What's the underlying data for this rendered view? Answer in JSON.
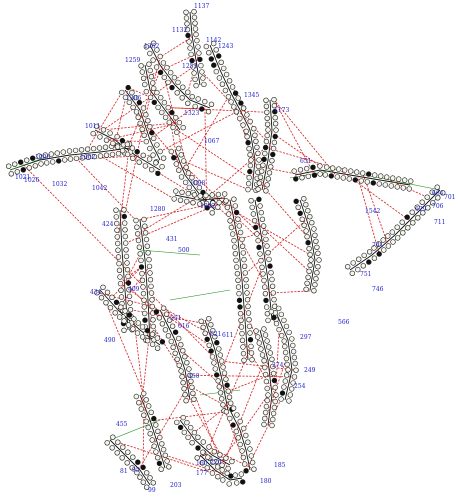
{
  "diagram": {
    "type": "rna-secondary-structure",
    "node_colors": {
      "nucleotide_fill": "#f5f5ec",
      "nucleotide_stroke": "#1a1a1a",
      "label": "#1a1acc",
      "backbone": "#111111",
      "base_pair": "#d42020",
      "non_canonical": "#1a8c1a"
    },
    "labels": [
      "1137",
      "1132",
      "1142",
      "1243",
      "1262",
      "1259",
      "1253",
      "1323",
      "1306",
      "1345",
      "1173",
      "1011",
      "1067",
      "1002",
      "1006",
      "1021",
      "1026",
      "1032",
      "1042",
      "1098",
      "1092",
      "1280",
      "651",
      "664",
      "701",
      "706",
      "629",
      "1542",
      "424",
      "431",
      "500",
      "409",
      "434",
      "490",
      "551",
      "616",
      "621",
      "741",
      "746",
      "751",
      "711",
      "566",
      "274",
      "254",
      "249",
      "297",
      "450",
      "455",
      "81",
      "99",
      "95",
      "203",
      "177",
      "185",
      "180",
      "226",
      "160",
      "611"
    ]
  }
}
